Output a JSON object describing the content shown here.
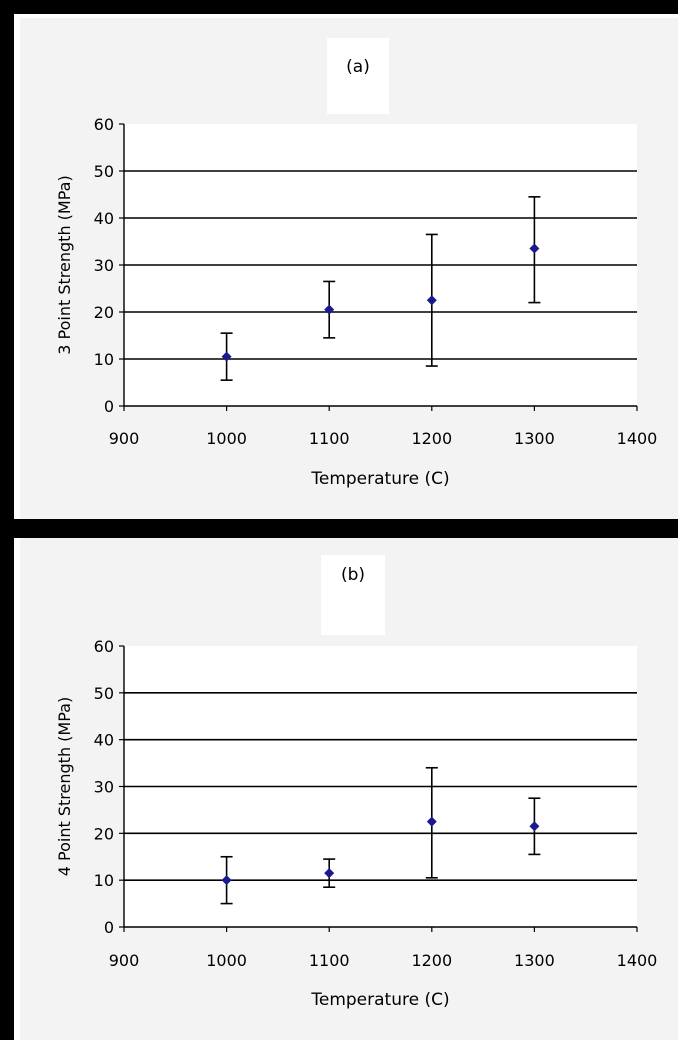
{
  "chart_data": [
    {
      "type": "scatter",
      "title": "(a)",
      "xlabel": "Temperature (C)",
      "ylabel": "3 Point Strength (MPa)",
      "xlim": [
        900,
        1400
      ],
      "ylim": [
        0,
        60
      ],
      "x_ticks": [
        900,
        1000,
        1100,
        1200,
        1300,
        1400
      ],
      "y_ticks": [
        0,
        10,
        20,
        30,
        40,
        50,
        60
      ],
      "grid": "horizontal",
      "error_bars": true,
      "marker_color": "#1a1a8c",
      "points": [
        {
          "x": 1000,
          "y": 10.5,
          "err_low": 5.5,
          "err_high": 15.5
        },
        {
          "x": 1100,
          "y": 20.5,
          "err_low": 14.5,
          "err_high": 26.5
        },
        {
          "x": 1200,
          "y": 22.5,
          "err_low": 8.5,
          "err_high": 36.5
        },
        {
          "x": 1300,
          "y": 33.5,
          "err_low": 22.0,
          "err_high": 44.5
        }
      ]
    },
    {
      "type": "scatter",
      "title": "(b)",
      "xlabel": "Temperature (C)",
      "ylabel": "4 Point Strength (MPa)",
      "xlim": [
        900,
        1400
      ],
      "ylim": [
        0,
        60
      ],
      "x_ticks": [
        900,
        1000,
        1100,
        1200,
        1300,
        1400
      ],
      "y_ticks": [
        0,
        10,
        20,
        30,
        40,
        50,
        60
      ],
      "grid": "horizontal",
      "error_bars": true,
      "marker_color": "#1a1a8c",
      "points": [
        {
          "x": 1000,
          "y": 10.0,
          "err_low": 5.0,
          "err_high": 15.0
        },
        {
          "x": 1100,
          "y": 11.5,
          "err_low": 8.5,
          "err_high": 14.5
        },
        {
          "x": 1200,
          "y": 22.5,
          "err_low": 10.5,
          "err_high": 34.0
        },
        {
          "x": 1300,
          "y": 21.5,
          "err_low": 15.5,
          "err_high": 27.5
        }
      ]
    }
  ]
}
